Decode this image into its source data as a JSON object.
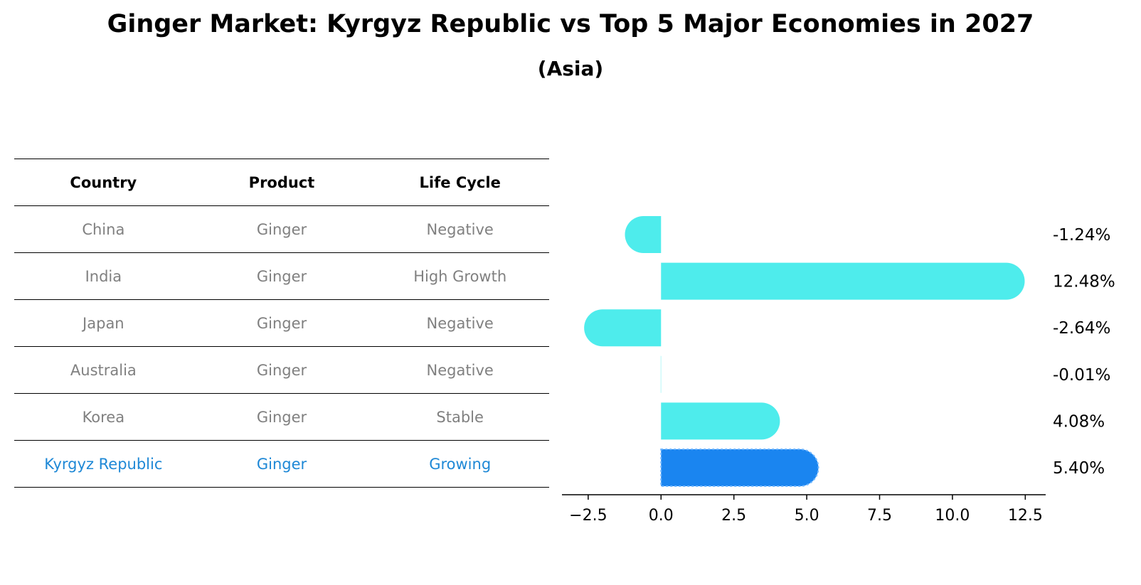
{
  "title": "Ginger Market: Kyrgyz Republic vs Top 5 Major Economies in 2027",
  "subtitle": "(Asia)",
  "table": {
    "headers": [
      "Country",
      "Product",
      "Life Cycle"
    ],
    "rows": [
      {
        "country": "China",
        "product": "Ginger",
        "life_cycle": "Negative"
      },
      {
        "country": "India",
        "product": "Ginger",
        "life_cycle": "High Growth"
      },
      {
        "country": "Japan",
        "product": "Ginger",
        "life_cycle": "Negative"
      },
      {
        "country": "Australia",
        "product": "Ginger",
        "life_cycle": "Negative"
      },
      {
        "country": "Korea",
        "product": "Ginger",
        "life_cycle": "Stable"
      },
      {
        "country": "Kyrgyz Republic",
        "product": "Ginger",
        "life_cycle": "Growing"
      }
    ]
  },
  "colors": {
    "bar": "#4eecec",
    "highlight_bar": "#1a85f0",
    "highlight_text": "#1e88d6",
    "muted_text": "#808080"
  },
  "chart_data": {
    "type": "bar",
    "orientation": "horizontal",
    "categories": [
      "China",
      "India",
      "Japan",
      "Australia",
      "Korea",
      "Kyrgyz Republic"
    ],
    "values": [
      -1.24,
      12.48,
      -2.64,
      -0.01,
      4.08,
      5.4
    ],
    "value_labels": [
      "-1.24%",
      "12.48%",
      "-2.64%",
      "-0.01%",
      "4.08%",
      "5.40%"
    ],
    "highlight": "Kyrgyz Republic",
    "xlim": [
      -3.4,
      13.2
    ],
    "xticks": [
      -2.5,
      0.0,
      2.5,
      5.0,
      7.5,
      10.0,
      12.5
    ],
    "xtick_labels": [
      "−2.5",
      "0.0",
      "2.5",
      "5.0",
      "7.5",
      "10.0",
      "12.5"
    ],
    "grid": false
  }
}
